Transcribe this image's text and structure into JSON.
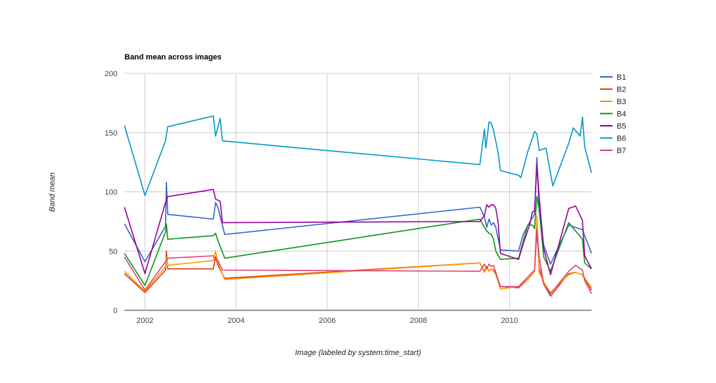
{
  "chart_data": {
    "type": "line",
    "title": "Band mean across images",
    "xlabel": "Image (labeled by system:time_start)",
    "ylabel": "Band mean",
    "x_ticks": [
      "2002",
      "2004",
      "2006",
      "2008",
      "2010"
    ],
    "y_ticks": [
      "200",
      "150",
      "100",
      "50",
      "0"
    ],
    "xlim": [
      2001.55,
      2011.8
    ],
    "ylim": [
      0,
      200
    ],
    "legend_position": "right",
    "grid": true,
    "series": [
      {
        "name": "B1",
        "color": "#3366cc",
        "points": [
          [
            2001.55,
            73
          ],
          [
            2002.0,
            41
          ],
          [
            2002.45,
            71
          ],
          [
            2002.47,
            108
          ],
          [
            2002.5,
            81
          ],
          [
            2003.5,
            77
          ],
          [
            2003.55,
            91
          ],
          [
            2003.6,
            87
          ],
          [
            2003.75,
            64
          ],
          [
            2009.35,
            87
          ],
          [
            2009.45,
            79
          ],
          [
            2009.5,
            70
          ],
          [
            2009.55,
            77
          ],
          [
            2009.6,
            72
          ],
          [
            2009.65,
            74
          ],
          [
            2009.7,
            70
          ],
          [
            2009.8,
            51
          ],
          [
            2010.2,
            50
          ],
          [
            2010.3,
            64
          ],
          [
            2010.45,
            75
          ],
          [
            2010.55,
            81
          ],
          [
            2010.6,
            129
          ],
          [
            2010.65,
            84
          ],
          [
            2010.75,
            55
          ],
          [
            2010.9,
            39
          ],
          [
            2011.3,
            72
          ],
          [
            2011.6,
            68
          ],
          [
            2011.8,
            48
          ]
        ]
      },
      {
        "name": "B2",
        "color": "#dc3912",
        "points": [
          [
            2001.55,
            31
          ],
          [
            2002.0,
            15
          ],
          [
            2002.45,
            34
          ],
          [
            2002.47,
            50
          ],
          [
            2002.5,
            35
          ],
          [
            2003.5,
            35
          ],
          [
            2003.55,
            45
          ],
          [
            2003.6,
            38
          ],
          [
            2003.75,
            27
          ],
          [
            2009.35,
            40
          ],
          [
            2009.45,
            33
          ],
          [
            2009.5,
            37
          ],
          [
            2009.55,
            33
          ],
          [
            2009.6,
            35
          ],
          [
            2009.65,
            34
          ],
          [
            2009.7,
            31
          ],
          [
            2009.8,
            20
          ],
          [
            2010.2,
            19
          ],
          [
            2010.45,
            28
          ],
          [
            2010.55,
            33
          ],
          [
            2010.6,
            68
          ],
          [
            2010.65,
            36
          ],
          [
            2010.75,
            22
          ],
          [
            2010.9,
            12
          ],
          [
            2011.3,
            31
          ],
          [
            2011.45,
            32
          ],
          [
            2011.6,
            30
          ],
          [
            2011.8,
            17
          ]
        ]
      },
      {
        "name": "B3",
        "color": "#ff9900",
        "points": [
          [
            2001.55,
            33
          ],
          [
            2002.0,
            16
          ],
          [
            2002.45,
            37
          ],
          [
            2002.47,
            45
          ],
          [
            2002.5,
            38
          ],
          [
            2003.5,
            42
          ],
          [
            2003.55,
            50
          ],
          [
            2003.6,
            40
          ],
          [
            2003.75,
            26
          ],
          [
            2009.35,
            40
          ],
          [
            2009.45,
            32
          ],
          [
            2009.5,
            36
          ],
          [
            2009.55,
            33
          ],
          [
            2009.6,
            35
          ],
          [
            2009.65,
            33
          ],
          [
            2009.7,
            30
          ],
          [
            2009.8,
            18
          ],
          [
            2010.2,
            20
          ],
          [
            2010.45,
            28
          ],
          [
            2010.55,
            33
          ],
          [
            2010.6,
            80
          ],
          [
            2010.65,
            32
          ],
          [
            2010.75,
            24
          ],
          [
            2010.9,
            15
          ],
          [
            2011.3,
            30
          ],
          [
            2011.45,
            32
          ],
          [
            2011.6,
            30
          ],
          [
            2011.8,
            19
          ]
        ]
      },
      {
        "name": "B4",
        "color": "#109618",
        "points": [
          [
            2001.55,
            48
          ],
          [
            2002.0,
            21
          ],
          [
            2002.45,
            66
          ],
          [
            2002.47,
            73
          ],
          [
            2002.5,
            60
          ],
          [
            2003.5,
            63
          ],
          [
            2003.55,
            65
          ],
          [
            2003.6,
            59
          ],
          [
            2003.75,
            44
          ],
          [
            2009.35,
            77
          ],
          [
            2009.45,
            70
          ],
          [
            2009.5,
            67
          ],
          [
            2009.55,
            65
          ],
          [
            2009.6,
            64
          ],
          [
            2009.65,
            60
          ],
          [
            2009.7,
            50
          ],
          [
            2009.8,
            43
          ],
          [
            2010.2,
            44
          ],
          [
            2010.3,
            58
          ],
          [
            2010.4,
            72
          ],
          [
            2010.5,
            72
          ],
          [
            2010.55,
            69
          ],
          [
            2010.6,
            96
          ],
          [
            2010.65,
            85
          ],
          [
            2010.75,
            45
          ],
          [
            2010.9,
            33
          ],
          [
            2011.3,
            74
          ],
          [
            2011.6,
            60
          ],
          [
            2011.65,
            40
          ],
          [
            2011.8,
            35
          ]
        ]
      },
      {
        "name": "B5",
        "color": "#990099",
        "points": [
          [
            2001.55,
            87
          ],
          [
            2002.0,
            31
          ],
          [
            2002.45,
            91
          ],
          [
            2002.5,
            96
          ],
          [
            2003.5,
            102
          ],
          [
            2003.55,
            94
          ],
          [
            2003.6,
            93
          ],
          [
            2003.65,
            92
          ],
          [
            2003.7,
            74
          ],
          [
            2009.35,
            75
          ],
          [
            2009.45,
            80
          ],
          [
            2009.5,
            89
          ],
          [
            2009.55,
            87
          ],
          [
            2009.6,
            89
          ],
          [
            2009.65,
            89
          ],
          [
            2009.7,
            86
          ],
          [
            2009.75,
            74
          ],
          [
            2009.8,
            48
          ],
          [
            2010.2,
            43
          ],
          [
            2010.3,
            56
          ],
          [
            2010.45,
            73
          ],
          [
            2010.5,
            83
          ],
          [
            2010.55,
            84
          ],
          [
            2010.6,
            123
          ],
          [
            2010.65,
            96
          ],
          [
            2010.75,
            52
          ],
          [
            2010.9,
            30
          ],
          [
            2011.3,
            86
          ],
          [
            2011.45,
            88
          ],
          [
            2011.6,
            76
          ],
          [
            2011.65,
            46
          ],
          [
            2011.8,
            35
          ]
        ]
      },
      {
        "name": "B6",
        "color": "#0099c6",
        "points": [
          [
            2001.55,
            156
          ],
          [
            2002.0,
            97
          ],
          [
            2002.45,
            143
          ],
          [
            2002.5,
            155
          ],
          [
            2003.5,
            164
          ],
          [
            2003.55,
            147
          ],
          [
            2003.65,
            162
          ],
          [
            2003.7,
            143
          ],
          [
            2009.35,
            123
          ],
          [
            2009.45,
            153
          ],
          [
            2009.48,
            137
          ],
          [
            2009.55,
            159
          ],
          [
            2009.6,
            158
          ],
          [
            2009.65,
            152
          ],
          [
            2009.75,
            133
          ],
          [
            2009.8,
            118
          ],
          [
            2010.2,
            114
          ],
          [
            2010.25,
            112
          ],
          [
            2010.4,
            134
          ],
          [
            2010.5,
            145
          ],
          [
            2010.55,
            151
          ],
          [
            2010.6,
            149
          ],
          [
            2010.65,
            135
          ],
          [
            2010.8,
            137
          ],
          [
            2010.95,
            105
          ],
          [
            2011.3,
            141
          ],
          [
            2011.4,
            154
          ],
          [
            2011.55,
            147
          ],
          [
            2011.6,
            163
          ],
          [
            2011.65,
            138
          ],
          [
            2011.8,
            116
          ]
        ]
      },
      {
        "name": "B7",
        "color": "#dd4477",
        "points": [
          [
            2001.55,
            45
          ],
          [
            2002.0,
            17
          ],
          [
            2002.45,
            41
          ],
          [
            2002.5,
            44
          ],
          [
            2003.5,
            46
          ],
          [
            2003.55,
            43
          ],
          [
            2003.6,
            42
          ],
          [
            2003.7,
            34
          ],
          [
            2009.35,
            33
          ],
          [
            2009.45,
            39
          ],
          [
            2009.5,
            35
          ],
          [
            2009.55,
            39
          ],
          [
            2009.6,
            37
          ],
          [
            2009.65,
            38
          ],
          [
            2009.7,
            32
          ],
          [
            2009.8,
            20
          ],
          [
            2010.2,
            20
          ],
          [
            2010.3,
            24
          ],
          [
            2010.45,
            30
          ],
          [
            2010.55,
            34
          ],
          [
            2010.6,
            69
          ],
          [
            2010.65,
            45
          ],
          [
            2010.75,
            22
          ],
          [
            2010.9,
            14
          ],
          [
            2011.3,
            33
          ],
          [
            2011.45,
            38
          ],
          [
            2011.6,
            34
          ],
          [
            2011.65,
            25
          ],
          [
            2011.8,
            14
          ]
        ]
      }
    ]
  }
}
